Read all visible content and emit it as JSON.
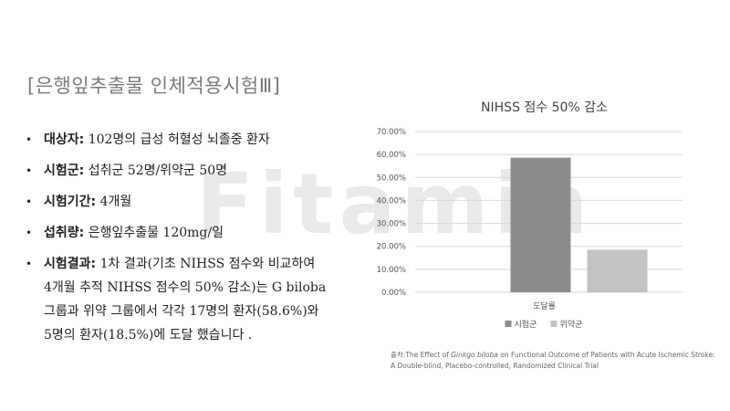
{
  "title": "[은행잎추출물 인체적용시험Ⅲ]",
  "watermark": "Fitamin",
  "bullets": [
    {
      "label": "대상자:",
      "text": " 102명의 급성 허혈성 뇌졸중 환자"
    },
    {
      "label": "시험군:",
      "text": " 섭취군 52명/위약군 50명"
    },
    {
      "label": "시험기간:",
      "text": " 4개월"
    },
    {
      "label": "섭취량:",
      "text": " 은행잎추출물 120mg/일"
    },
    {
      "label": "시험결과:",
      "text": " 1차 결과(기초 NIHSS 점수와 비교하여 4개월 추적 NIHSS 점수의 50% 감소)는 G biloba 그룹과 위약 그룹에서 각각 17명의 환자(58.6%)와 5명의 환자(18.5%)에 도달 했습니다 ."
    }
  ],
  "chart_data": {
    "type": "bar",
    "title": "NIHSS 점수 50% 감소",
    "categories": [
      "도달률"
    ],
    "series": [
      {
        "name": "시험군",
        "values": [
          58.6
        ],
        "color": "#8c8c8c"
      },
      {
        "name": "위약군",
        "values": [
          18.5
        ],
        "color": "#c3c3c3"
      }
    ],
    "yticks": [
      "0.00%",
      "10.00%",
      "20.00%",
      "30.00%",
      "40.00%",
      "50.00%",
      "60.00%",
      "70.00%"
    ],
    "ylim": [
      0,
      70
    ],
    "grid": true,
    "legend_position": "bottom"
  },
  "source": {
    "prefix": "출처:The Effect of ",
    "italic": "Ginkgo biloba",
    "suffix": " on Functional Outcome of Patients with Acute Ischemic Stroke: A Double-blind, Placebo-controlled, Randomized Clinical Trial"
  }
}
